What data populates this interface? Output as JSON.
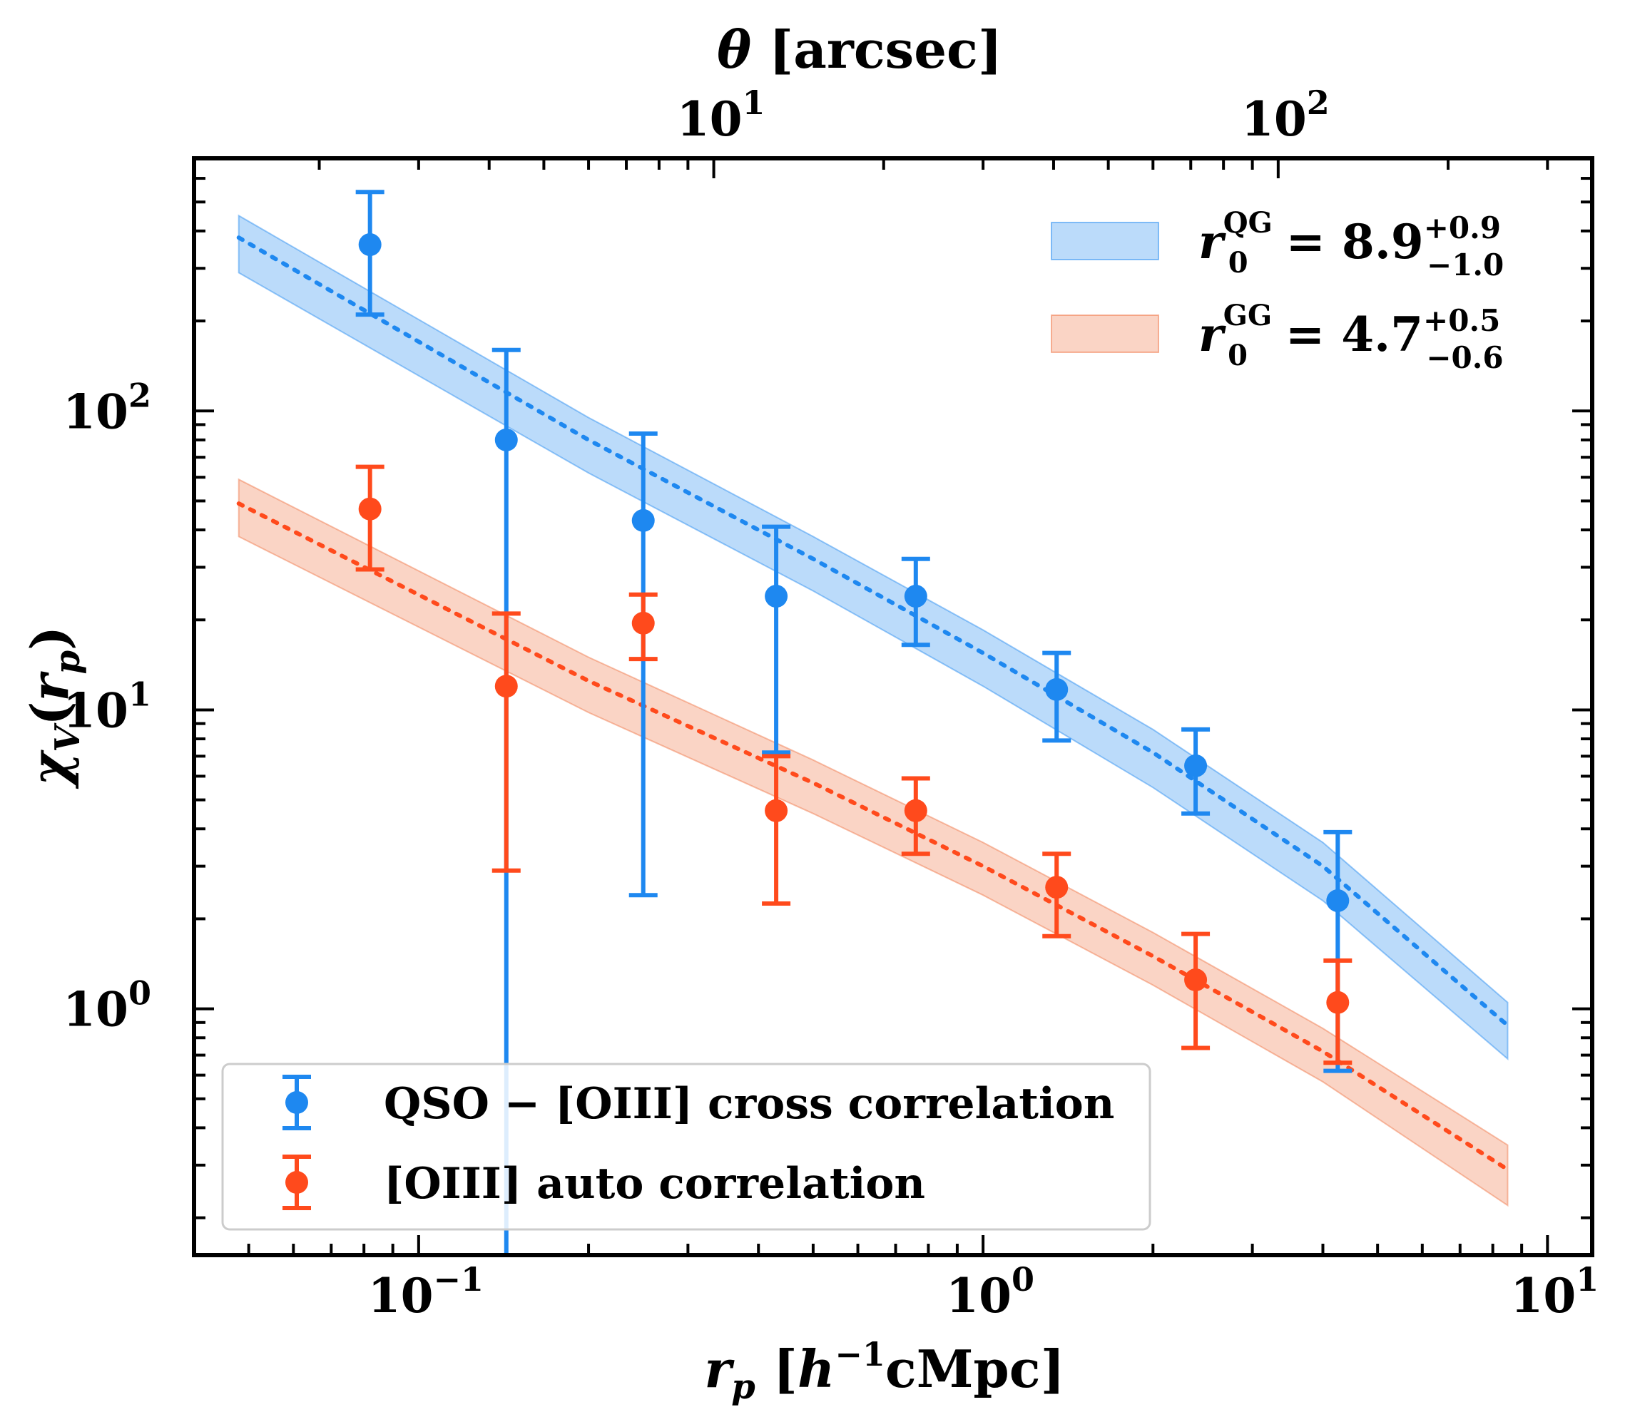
{
  "chart_data": {
    "type": "scatter",
    "xscale": "log",
    "yscale": "log",
    "xlim": [
      0.04,
      12
    ],
    "ylim": [
      0.15,
      700
    ],
    "top_xlim": [
      1.2,
      360
    ],
    "xlabel": "r_p [h^-1 cMpc]",
    "ylabel": "χ_V(r_p)",
    "top_xlabel": "θ [arcsec]",
    "x_ticks": [
      {
        "value": 0.1,
        "base": "10",
        "exp": "−1"
      },
      {
        "value": 1,
        "base": "10",
        "exp": "0"
      },
      {
        "value": 10,
        "base": "10",
        "exp": "1"
      }
    ],
    "y_ticks": [
      {
        "value": 1,
        "base": "10",
        "exp": "0"
      },
      {
        "value": 10,
        "base": "10",
        "exp": "1"
      },
      {
        "value": 100,
        "base": "10",
        "exp": "2"
      }
    ],
    "top_x_ticks": [
      {
        "value": 10,
        "base": "10",
        "exp": "1"
      },
      {
        "value": 100,
        "base": "10",
        "exp": "2"
      }
    ],
    "series": [
      {
        "name": "QSO − [OIII] cross correlation",
        "color": "#1E88F0",
        "x": [
          0.082,
          0.143,
          0.25,
          0.43,
          0.76,
          1.35,
          2.38,
          4.25
        ],
        "y": [
          360,
          80,
          43,
          24,
          24,
          11.7,
          6.5,
          2.3
        ],
        "yerr_low": [
          210,
          0.15,
          2.4,
          7.2,
          16.5,
          7.9,
          4.5,
          0.62
        ],
        "yerr_high": [
          540,
          160,
          84,
          41,
          32,
          15.5,
          8.6,
          3.9
        ]
      },
      {
        "name": "[OIII] auto correlation",
        "color": "#FF4A1C",
        "x": [
          0.082,
          0.143,
          0.25,
          0.43,
          0.76,
          1.35,
          2.38,
          4.25
        ],
        "y": [
          47,
          12,
          19.5,
          4.6,
          4.6,
          2.55,
          1.25,
          1.05
        ],
        "yerr_low": [
          29.5,
          2.9,
          14.8,
          2.25,
          3.3,
          1.75,
          0.74,
          0.66
        ],
        "yerr_high": [
          65,
          21,
          24.3,
          7.0,
          5.9,
          3.3,
          1.78,
          1.45
        ]
      }
    ],
    "bands": [
      {
        "name": "QG",
        "color": "#1E88F0",
        "label_prefix": "r",
        "label_sub": "0",
        "label_sup": "QG",
        "label_eq": "= 8.9",
        "label_err_plus": "+0.9",
        "label_err_minus": "−1.0",
        "x": [
          0.048,
          0.2,
          0.5,
          1,
          2,
          4,
          8.5
        ],
        "center": [
          380,
          80,
          32,
          15.5,
          7.2,
          3.0,
          0.88
        ],
        "lower": [
          290,
          62,
          25,
          12.0,
          5.5,
          2.3,
          0.68
        ],
        "upper": [
          450,
          95,
          38,
          18.5,
          8.6,
          3.6,
          1.05
        ]
      },
      {
        "name": "GG",
        "color": "#F07040",
        "label_prefix": "r",
        "label_sub": "0",
        "label_sup": "GG",
        "label_eq": "= 4.7",
        "label_err_plus": "+0.5",
        "label_err_minus": "−0.6",
        "x": [
          0.048,
          0.2,
          0.5,
          1,
          2,
          4,
          8.5
        ],
        "center": [
          49,
          12.5,
          5.7,
          3.0,
          1.5,
          0.72,
          0.29
        ],
        "lower": [
          38,
          9.8,
          4.5,
          2.4,
          1.2,
          0.57,
          0.22
        ],
        "upper": [
          59,
          15.0,
          6.8,
          3.6,
          1.8,
          0.86,
          0.35
        ]
      }
    ]
  }
}
